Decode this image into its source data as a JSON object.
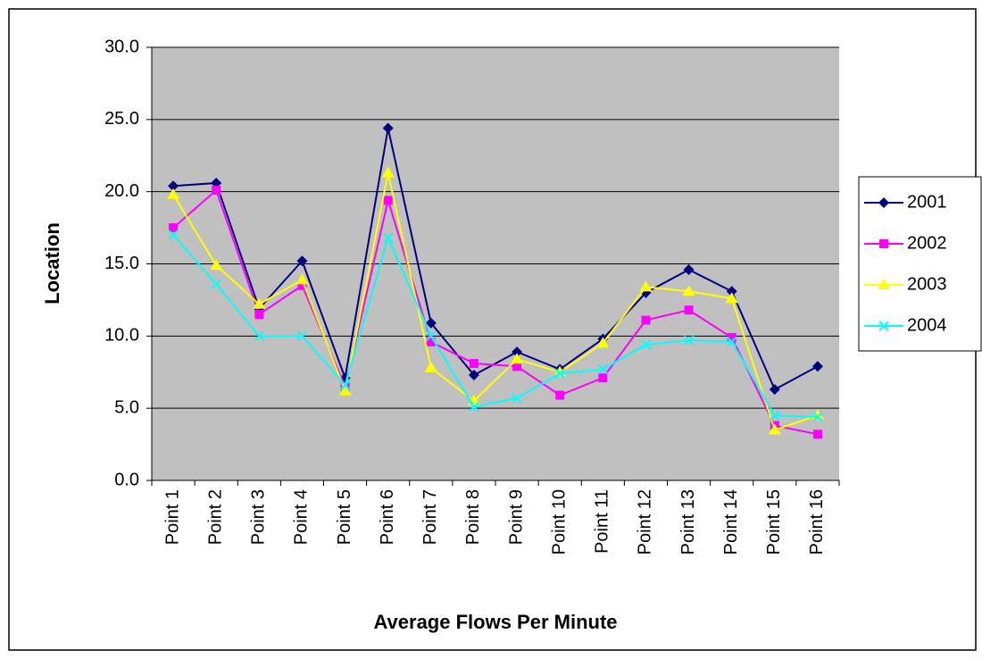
{
  "chart_data": {
    "type": "line",
    "x_label": "Average Flows Per Minute",
    "y_label": "Location",
    "categories": [
      "Point 1",
      "Point 2",
      "Point 3",
      "Point 4",
      "Point 5",
      "Point 6",
      "Point 7",
      "Point 8",
      "Point 9",
      "Point 10",
      "Point 11",
      "Point 12",
      "Point 13",
      "Point 14",
      "Point 15",
      "Point 16"
    ],
    "series": [
      {
        "name": "2001",
        "color": "#000080",
        "marker": "diamond",
        "values": [
          20.4,
          20.6,
          11.9,
          15.2,
          7.1,
          24.4,
          10.9,
          7.3,
          8.9,
          7.7,
          9.8,
          13.0,
          14.6,
          13.1,
          6.3,
          7.9
        ]
      },
      {
        "name": "2002",
        "color": "#FF00FF",
        "marker": "square",
        "values": [
          17.5,
          20.1,
          11.5,
          13.5,
          6.5,
          19.4,
          9.6,
          8.1,
          7.9,
          5.9,
          7.1,
          11.1,
          11.8,
          9.9,
          3.8,
          3.2
        ]
      },
      {
        "name": "2003",
        "color": "#FFFF00",
        "marker": "triangle",
        "values": [
          19.8,
          14.9,
          12.2,
          13.9,
          6.2,
          21.3,
          7.8,
          5.5,
          8.4,
          7.5,
          9.5,
          13.4,
          13.1,
          12.6,
          3.5,
          4.5
        ]
      },
      {
        "name": "2004",
        "color": "#00FFFF",
        "marker": "x",
        "values": [
          17.0,
          13.6,
          10.0,
          10.0,
          6.6,
          16.8,
          10.0,
          5.1,
          5.7,
          7.4,
          7.7,
          9.4,
          9.7,
          9.6,
          4.5,
          4.4
        ]
      }
    ],
    "ylim": [
      0,
      30
    ],
    "yticks": [
      {
        "value": 0,
        "label": "0.0"
      },
      {
        "value": 5,
        "label": "5.0"
      },
      {
        "value": 10,
        "label": "10.0"
      },
      {
        "value": 15,
        "label": "15.0"
      },
      {
        "value": 20,
        "label": "20.0"
      },
      {
        "value": 25,
        "label": "25.0"
      },
      {
        "value": 30,
        "label": "30.0"
      }
    ],
    "grid": true,
    "legend": "right"
  }
}
